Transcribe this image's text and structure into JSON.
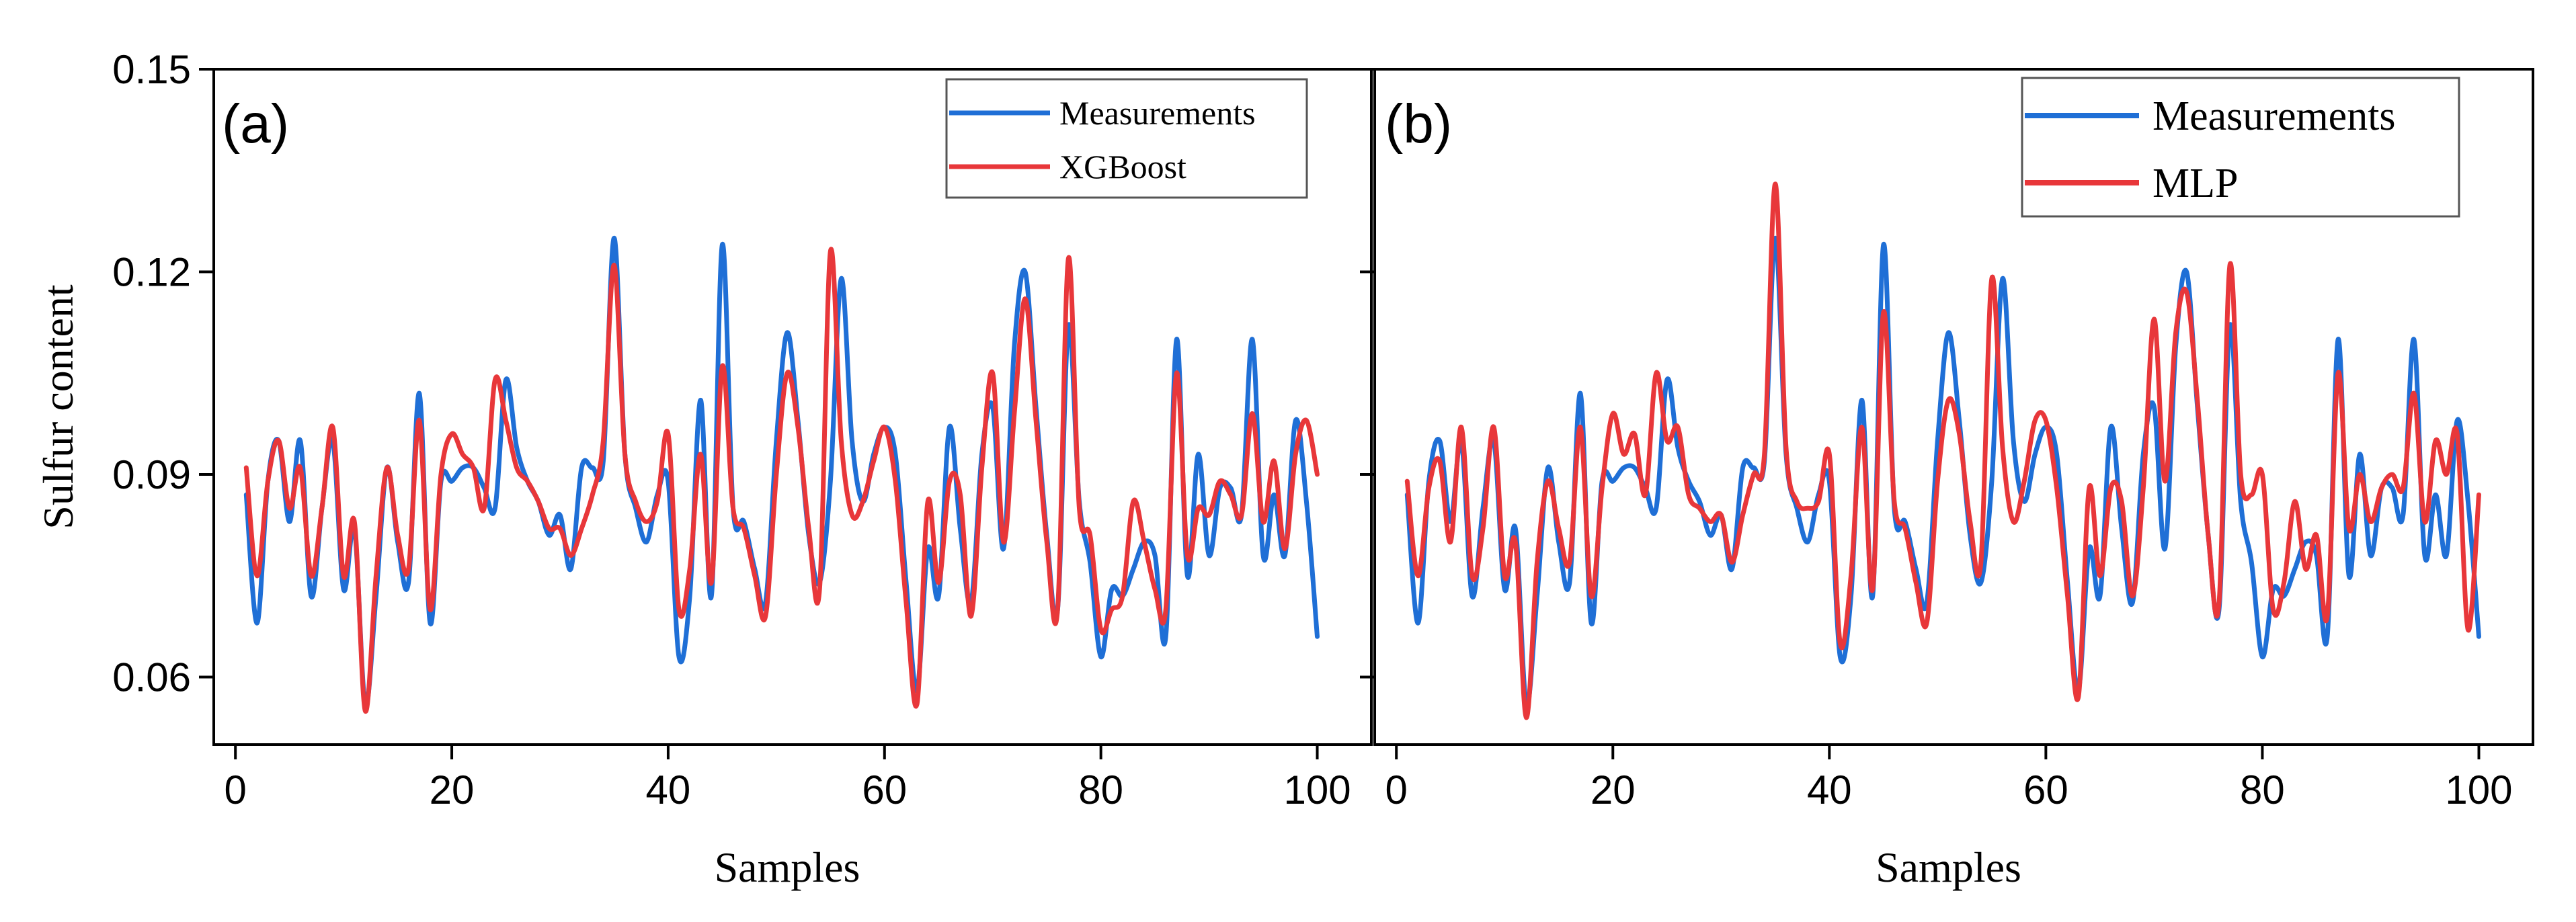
{
  "chart_data": [
    {
      "type": "line",
      "panel_label": "(a)",
      "xlabel": "Samples",
      "ylabel": "Sulfur content",
      "xlim": [
        -2,
        105
      ],
      "ylim": [
        0.05,
        0.15
      ],
      "xticks": [
        "0",
        "20",
        "40",
        "60",
        "80",
        "100"
      ],
      "yticks": [
        "0.06",
        "0.09",
        "0.12",
        "0.15"
      ],
      "legend_position": "top-right",
      "series": [
        {
          "name": "Measurements",
          "color": "#1f6fd6",
          "x": [
            1,
            2,
            3,
            4,
            5,
            6,
            7,
            8,
            9,
            10,
            11,
            12,
            13,
            14,
            15,
            16,
            17,
            18,
            19,
            20,
            21,
            22,
            23,
            24,
            25,
            26,
            27,
            28,
            29,
            30,
            31,
            32,
            33,
            34,
            35,
            36,
            37,
            38,
            39,
            40,
            41,
            42,
            43,
            44,
            45,
            46,
            47,
            48,
            49,
            50,
            51,
            52,
            53,
            54,
            55,
            56,
            57,
            58,
            59,
            60,
            61,
            62,
            63,
            64,
            65,
            66,
            67,
            68,
            69,
            70,
            71,
            72,
            73,
            74,
            75,
            76,
            77,
            78,
            79,
            80,
            81,
            82,
            83,
            84,
            85,
            86,
            87,
            88,
            89,
            90,
            91,
            92,
            93,
            94,
            95,
            96,
            97,
            98,
            99,
            100
          ],
          "values": [
            0.087,
            0.068,
            0.089,
            0.095,
            0.083,
            0.095,
            0.072,
            0.085,
            0.095,
            0.073,
            0.082,
            0.056,
            0.072,
            0.091,
            0.08,
            0.074,
            0.102,
            0.068,
            0.089,
            0.089,
            0.091,
            0.091,
            0.088,
            0.085,
            0.104,
            0.094,
            0.089,
            0.086,
            0.081,
            0.084,
            0.076,
            0.091,
            0.091,
            0.092,
            0.125,
            0.093,
            0.085,
            0.08,
            0.087,
            0.089,
            0.063,
            0.072,
            0.101,
            0.072,
            0.124,
            0.085,
            0.083,
            0.076,
            0.071,
            0.095,
            0.111,
            0.098,
            0.081,
            0.074,
            0.089,
            0.119,
            0.095,
            0.086,
            0.093,
            0.097,
            0.093,
            0.074,
            0.058,
            0.079,
            0.072,
            0.097,
            0.082,
            0.071,
            0.093,
            0.1,
            0.079,
            0.109,
            0.12,
            0.1,
            0.081,
            0.07,
            0.112,
            0.086,
            0.077,
            0.063,
            0.073,
            0.072,
            0.076,
            0.08,
            0.078,
            0.066,
            0.11,
            0.075,
            0.093,
            0.078,
            0.088,
            0.088,
            0.084,
            0.11,
            0.078,
            0.087,
            0.078,
            0.098,
            0.086,
            0.066
          ]
        },
        {
          "name": "XGBoost",
          "color": "#e8373a",
          "x": [
            1,
            2,
            3,
            4,
            5,
            6,
            7,
            8,
            9,
            10,
            11,
            12,
            13,
            14,
            15,
            16,
            17,
            18,
            19,
            20,
            21,
            22,
            23,
            24,
            25,
            26,
            27,
            28,
            29,
            30,
            31,
            32,
            33,
            34,
            35,
            36,
            37,
            38,
            39,
            40,
            41,
            42,
            43,
            44,
            45,
            46,
            47,
            48,
            49,
            50,
            51,
            52,
            53,
            54,
            55,
            56,
            57,
            58,
            59,
            60,
            61,
            62,
            63,
            64,
            65,
            66,
            67,
            68,
            69,
            70,
            71,
            72,
            73,
            74,
            75,
            76,
            77,
            78,
            79,
            80,
            81,
            82,
            83,
            84,
            85,
            86,
            87,
            88,
            89,
            90,
            91,
            92,
            93,
            94,
            95,
            96,
            97,
            98,
            99,
            100
          ],
          "values": [
            0.091,
            0.075,
            0.089,
            0.095,
            0.085,
            0.091,
            0.075,
            0.085,
            0.097,
            0.075,
            0.083,
            0.055,
            0.075,
            0.091,
            0.081,
            0.076,
            0.098,
            0.07,
            0.09,
            0.096,
            0.093,
            0.091,
            0.085,
            0.104,
            0.098,
            0.091,
            0.089,
            0.086,
            0.082,
            0.082,
            0.078,
            0.082,
            0.087,
            0.095,
            0.121,
            0.093,
            0.086,
            0.083,
            0.086,
            0.096,
            0.07,
            0.076,
            0.093,
            0.074,
            0.106,
            0.085,
            0.082,
            0.075,
            0.069,
            0.09,
            0.105,
            0.097,
            0.082,
            0.073,
            0.123,
            0.095,
            0.084,
            0.086,
            0.092,
            0.097,
            0.089,
            0.071,
            0.056,
            0.086,
            0.074,
            0.089,
            0.087,
            0.069,
            0.091,
            0.105,
            0.08,
            0.099,
            0.116,
            0.098,
            0.08,
            0.07,
            0.122,
            0.085,
            0.081,
            0.067,
            0.07,
            0.072,
            0.086,
            0.08,
            0.073,
            0.07,
            0.105,
            0.078,
            0.085,
            0.084,
            0.089,
            0.087,
            0.084,
            0.099,
            0.083,
            0.092,
            0.079,
            0.093,
            0.098,
            0.09
          ]
        }
      ]
    },
    {
      "type": "line",
      "panel_label": "(b)",
      "xlabel": "Samples",
      "ylabel": "",
      "xlim": [
        -2,
        105
      ],
      "ylim": [
        0.05,
        0.15
      ],
      "xticks": [
        "0",
        "20",
        "40",
        "60",
        "80",
        "100"
      ],
      "yticks": [],
      "legend_position": "top-right",
      "series": [
        {
          "name": "Measurements",
          "color": "#1f6fd6",
          "x": [
            1,
            2,
            3,
            4,
            5,
            6,
            7,
            8,
            9,
            10,
            11,
            12,
            13,
            14,
            15,
            16,
            17,
            18,
            19,
            20,
            21,
            22,
            23,
            24,
            25,
            26,
            27,
            28,
            29,
            30,
            31,
            32,
            33,
            34,
            35,
            36,
            37,
            38,
            39,
            40,
            41,
            42,
            43,
            44,
            45,
            46,
            47,
            48,
            49,
            50,
            51,
            52,
            53,
            54,
            55,
            56,
            57,
            58,
            59,
            60,
            61,
            62,
            63,
            64,
            65,
            66,
            67,
            68,
            69,
            70,
            71,
            72,
            73,
            74,
            75,
            76,
            77,
            78,
            79,
            80,
            81,
            82,
            83,
            84,
            85,
            86,
            87,
            88,
            89,
            90,
            91,
            92,
            93,
            94,
            95,
            96,
            97,
            98,
            99,
            100
          ],
          "values": [
            0.087,
            0.068,
            0.089,
            0.095,
            0.083,
            0.095,
            0.072,
            0.085,
            0.095,
            0.073,
            0.082,
            0.056,
            0.072,
            0.091,
            0.08,
            0.074,
            0.102,
            0.068,
            0.089,
            0.089,
            0.091,
            0.091,
            0.088,
            0.085,
            0.104,
            0.094,
            0.089,
            0.086,
            0.081,
            0.084,
            0.076,
            0.091,
            0.091,
            0.092,
            0.125,
            0.093,
            0.085,
            0.08,
            0.087,
            0.089,
            0.063,
            0.072,
            0.101,
            0.072,
            0.124,
            0.085,
            0.083,
            0.076,
            0.071,
            0.095,
            0.111,
            0.098,
            0.081,
            0.074,
            0.089,
            0.119,
            0.095,
            0.086,
            0.093,
            0.097,
            0.093,
            0.074,
            0.058,
            0.079,
            0.072,
            0.097,
            0.082,
            0.071,
            0.093,
            0.1,
            0.079,
            0.109,
            0.12,
            0.1,
            0.081,
            0.07,
            0.112,
            0.086,
            0.077,
            0.063,
            0.073,
            0.072,
            0.076,
            0.08,
            0.078,
            0.066,
            0.11,
            0.075,
            0.093,
            0.078,
            0.088,
            0.088,
            0.084,
            0.11,
            0.078,
            0.087,
            0.078,
            0.098,
            0.086,
            0.066
          ]
        },
        {
          "name": "MLP",
          "color": "#e8373a",
          "x": [
            1,
            2,
            3,
            4,
            5,
            6,
            7,
            8,
            9,
            10,
            11,
            12,
            13,
            14,
            15,
            16,
            17,
            18,
            19,
            20,
            21,
            22,
            23,
            24,
            25,
            26,
            27,
            28,
            29,
            30,
            31,
            32,
            33,
            34,
            35,
            36,
            37,
            38,
            39,
            40,
            41,
            42,
            43,
            44,
            45,
            46,
            47,
            48,
            49,
            50,
            51,
            52,
            53,
            54,
            55,
            56,
            57,
            58,
            59,
            60,
            61,
            62,
            63,
            64,
            65,
            66,
            67,
            68,
            69,
            70,
            71,
            72,
            73,
            74,
            75,
            76,
            77,
            78,
            79,
            80,
            81,
            82,
            83,
            84,
            85,
            86,
            87,
            88,
            89,
            90,
            91,
            92,
            93,
            94,
            95,
            96,
            97,
            98,
            99,
            100
          ],
          "values": [
            0.089,
            0.075,
            0.088,
            0.092,
            0.08,
            0.097,
            0.075,
            0.082,
            0.097,
            0.075,
            0.08,
            0.054,
            0.077,
            0.089,
            0.082,
            0.077,
            0.097,
            0.072,
            0.088,
            0.099,
            0.093,
            0.096,
            0.087,
            0.105,
            0.095,
            0.097,
            0.087,
            0.085,
            0.083,
            0.084,
            0.077,
            0.084,
            0.09,
            0.093,
            0.133,
            0.094,
            0.086,
            0.085,
            0.086,
            0.093,
            0.065,
            0.075,
            0.097,
            0.073,
            0.114,
            0.086,
            0.082,
            0.074,
            0.068,
            0.089,
            0.101,
            0.096,
            0.083,
            0.077,
            0.119,
            0.094,
            0.083,
            0.089,
            0.098,
            0.098,
            0.088,
            0.072,
            0.057,
            0.088,
            0.075,
            0.088,
            0.086,
            0.072,
            0.088,
            0.113,
            0.089,
            0.111,
            0.117,
            0.101,
            0.081,
            0.071,
            0.121,
            0.09,
            0.087,
            0.09,
            0.07,
            0.074,
            0.086,
            0.076,
            0.081,
            0.069,
            0.105,
            0.082,
            0.09,
            0.083,
            0.088,
            0.09,
            0.088,
            0.102,
            0.083,
            0.095,
            0.09,
            0.096,
            0.067,
            0.087
          ]
        }
      ]
    }
  ]
}
